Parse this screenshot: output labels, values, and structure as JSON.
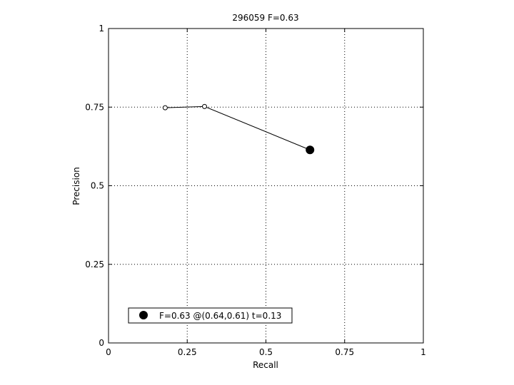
{
  "chart_data": {
    "type": "line",
    "title": "296059 F=0.63",
    "xlabel": "Recall",
    "ylabel": "Precision",
    "xlim": [
      0,
      1
    ],
    "ylim": [
      0,
      1
    ],
    "grid": true,
    "grid_style": "dotted",
    "x_ticks": [
      0,
      0.25,
      0.5,
      0.75,
      1
    ],
    "x_tick_labels": [
      "0",
      "0.25",
      "0.5",
      "0.75",
      "1"
    ],
    "y_ticks": [
      0,
      0.25,
      0.5,
      0.75,
      1
    ],
    "y_tick_labels": [
      "0",
      "0.25",
      "0.5",
      "0.75",
      "1"
    ],
    "series": [
      {
        "x": [
          0.18,
          0.305,
          0.64
        ],
        "y": [
          0.748,
          0.752,
          0.614
        ],
        "color": "#000000",
        "marker": "open-circle"
      }
    ],
    "highlight_point": {
      "x": 0.64,
      "y": 0.614,
      "marker": "filled-circle",
      "color": "#000000"
    },
    "legend": {
      "placement": "bottom-left",
      "entries": [
        "F=0.63 @(0.64,0.61) t=0.13"
      ]
    }
  }
}
